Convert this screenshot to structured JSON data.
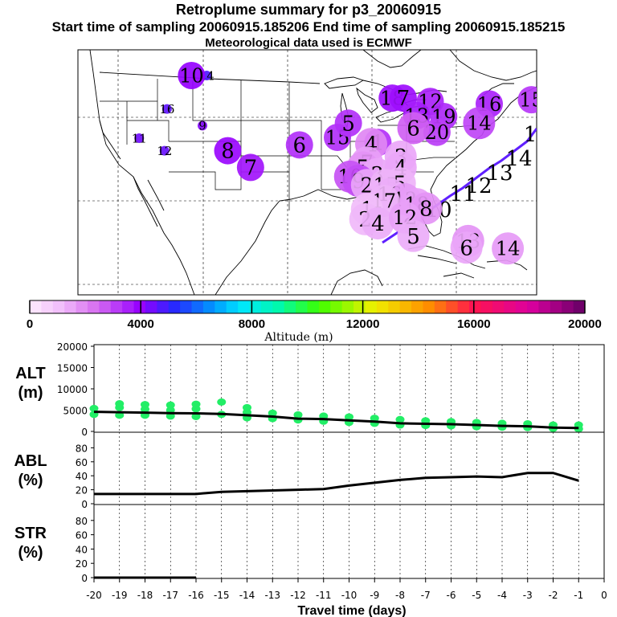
{
  "title": "Retroplume summary for p3_20060915",
  "subtitle": "Start time of sampling 20060915.185206     End time of sampling 20060915.185215",
  "met_line": "Meteorological data used is ECMWF",
  "chart_data": [
    {
      "type": "scatter",
      "name": "map",
      "description_labels": [
        "1",
        "2",
        "3",
        "4",
        "5",
        "6",
        "7",
        "8",
        "9",
        "10",
        "11",
        "12",
        "13",
        "14",
        "15",
        "16",
        "17",
        "18",
        "19"
      ],
      "plumes": [
        {
          "label": "18",
          "lon": -87.5,
          "lat": 47.3,
          "alt": 3800
        },
        {
          "label": "7",
          "lon": -86.2,
          "lat": 47.3,
          "alt": 3800
        },
        {
          "label": "12",
          "lon": -83.0,
          "lat": 46.9,
          "alt": 3500
        },
        {
          "label": "13",
          "lon": -84.6,
          "lat": 45.2,
          "alt": 3600
        },
        {
          "label": "19",
          "lon": -81.4,
          "lat": 45.1,
          "alt": 3400
        },
        {
          "label": "16",
          "lon": -76.0,
          "lat": 46.6,
          "alt": 3500
        },
        {
          "label": "15",
          "lon": -71.0,
          "lat": 47.1,
          "alt": 3200
        },
        {
          "label": "14",
          "lon": -77.2,
          "lat": 44.3,
          "alt": 3000
        },
        {
          "label": "20",
          "lon": -82.2,
          "lat": 43.2,
          "alt": 3100
        },
        {
          "label": "6",
          "lon": -85.0,
          "lat": 43.7,
          "alt": 2600
        },
        {
          "label": "15",
          "lon": -94.0,
          "lat": 42.6,
          "alt": 3300
        },
        {
          "label": "1",
          "lon": -89.2,
          "lat": 42.0,
          "alt": 3300
        },
        {
          "label": "4",
          "lon": -90.0,
          "lat": 41.8,
          "alt": 2000
        },
        {
          "label": "3",
          "lon": -86.5,
          "lat": 40.3,
          "alt": 1500
        },
        {
          "label": "4",
          "lon": -86.5,
          "lat": 39.0,
          "alt": 1500
        },
        {
          "label": "7",
          "lon": -90.5,
          "lat": 39.6,
          "alt": 1600
        },
        {
          "label": "5",
          "lon": -91.0,
          "lat": 39.0,
          "alt": 1800
        },
        {
          "label": "3",
          "lon": -89.3,
          "lat": 38.2,
          "alt": 1500
        },
        {
          "label": "10",
          "lon": -92.5,
          "lat": 37.9,
          "alt": 2800
        },
        {
          "label": "9",
          "lon": -91.5,
          "lat": 37.4,
          "alt": 2900
        },
        {
          "label": "2",
          "lon": -90.5,
          "lat": 36.9,
          "alt": 1500
        },
        {
          "label": "15",
          "lon": -88.3,
          "lat": 36.9,
          "alt": 1300
        },
        {
          "label": "5",
          "lon": -86.6,
          "lat": 37.1,
          "alt": 1300
        },
        {
          "label": "16",
          "lon": -87.8,
          "lat": 35.8,
          "alt": 1400
        },
        {
          "label": "12",
          "lon": -86.0,
          "lat": 35.2,
          "alt": 1700
        },
        {
          "label": "17",
          "lon": -88.5,
          "lat": 35.0,
          "alt": 1300
        },
        {
          "label": "18",
          "lon": -84.6,
          "lat": 34.6,
          "alt": 1600
        },
        {
          "label": "8",
          "lon": -83.5,
          "lat": 34.1,
          "alt": 1800
        },
        {
          "label": "1",
          "lon": -90.5,
          "lat": 34.0,
          "alt": 1100
        },
        {
          "label": "2",
          "lon": -90.7,
          "lat": 32.8,
          "alt": 1200
        },
        {
          "label": "4",
          "lon": -89.2,
          "lat": 32.3,
          "alt": 1400
        },
        {
          "label": "12",
          "lon": -86.0,
          "lat": 33.0,
          "alt": 1600
        },
        {
          "label": "5",
          "lon": -85.0,
          "lat": 30.8,
          "alt": 1400
        },
        {
          "label": "13",
          "lon": -78.5,
          "lat": 30.2,
          "alt": 1800
        },
        {
          "label": "6",
          "lon": -78.7,
          "lat": 29.4,
          "alt": 1500
        },
        {
          "label": "14",
          "lon": -73.8,
          "lat": 29.3,
          "alt": 1700
        },
        {
          "label": "8",
          "lon": -68.0,
          "lat": 28.2,
          "alt": 1300
        },
        {
          "label": "14",
          "lon": -109.5,
          "lat": 50.0,
          "alt": 4800
        },
        {
          "label": "10",
          "lon": -111.3,
          "lat": 50.0,
          "alt": 4000
        },
        {
          "label": "16",
          "lon": -114.2,
          "lat": 46.0,
          "alt": 4600
        },
        {
          "label": "9",
          "lon": -110.0,
          "lat": 44.0,
          "alt": 4200
        },
        {
          "label": "11",
          "lon": -117.5,
          "lat": 42.5,
          "alt": 4400
        },
        {
          "label": "12",
          "lon": -114.5,
          "lat": 41.0,
          "alt": 4500
        },
        {
          "label": "8",
          "lon": -107.0,
          "lat": 41.0,
          "alt": 3900
        },
        {
          "label": "6",
          "lon": -98.5,
          "lat": 41.7,
          "alt": 3300
        },
        {
          "label": "5",
          "lon": -92.7,
          "lat": 44.3,
          "alt": 3300
        },
        {
          "label": "7",
          "lon": -104.3,
          "lat": 39.0,
          "alt": 3700
        }
      ],
      "trajectory_labels": [
        "9",
        "10",
        "11",
        "12",
        "13",
        "14",
        "1"
      ],
      "colorbar": {
        "min": 0,
        "max": 20000,
        "ticks": [
          "0",
          "4000",
          "8000",
          "12000",
          "16000",
          "20000"
        ],
        "label": "Altitude (m)"
      }
    },
    {
      "type": "line",
      "name": "ALT",
      "ylabel_top": "ALT",
      "ylabel_bottom": "(m)",
      "ylim": [
        0,
        20000
      ],
      "yticks": [
        "0",
        "5000",
        "10000",
        "15000",
        "20000"
      ],
      "x": [
        -20,
        -19,
        -18,
        -17,
        -16,
        -15,
        -14,
        -13,
        -12,
        -11,
        -10,
        -9,
        -8,
        -7,
        -6,
        -5,
        -4,
        -3,
        -2,
        -1
      ],
      "values": [
        4600,
        4500,
        4400,
        4300,
        4250,
        4100,
        3800,
        3500,
        3000,
        2900,
        2600,
        2300,
        1900,
        1800,
        1700,
        1500,
        1300,
        1200,
        900,
        800
      ],
      "scatter_points": [
        {
          "x": -20,
          "y": 4000
        },
        {
          "x": -20,
          "y": 5400
        },
        {
          "x": -19,
          "y": 3800
        },
        {
          "x": -19,
          "y": 5600
        },
        {
          "x": -19,
          "y": 6500
        },
        {
          "x": -18,
          "y": 3800
        },
        {
          "x": -18,
          "y": 5200
        },
        {
          "x": -18,
          "y": 6300
        },
        {
          "x": -17,
          "y": 3600
        },
        {
          "x": -17,
          "y": 5000
        },
        {
          "x": -17,
          "y": 6200
        },
        {
          "x": -16,
          "y": 3500
        },
        {
          "x": -16,
          "y": 5300
        },
        {
          "x": -16,
          "y": 6400
        },
        {
          "x": -15,
          "y": 4000
        },
        {
          "x": -15,
          "y": 6900
        },
        {
          "x": -14,
          "y": 3200
        },
        {
          "x": -14,
          "y": 4500
        },
        {
          "x": -14,
          "y": 5600
        },
        {
          "x": -13,
          "y": 3000
        },
        {
          "x": -13,
          "y": 4300
        },
        {
          "x": -12,
          "y": 2700
        },
        {
          "x": -12,
          "y": 3900
        },
        {
          "x": -11,
          "y": 2400
        },
        {
          "x": -11,
          "y": 3600
        },
        {
          "x": -10,
          "y": 2100
        },
        {
          "x": -10,
          "y": 3400
        },
        {
          "x": -9,
          "y": 1900
        },
        {
          "x": -9,
          "y": 3100
        },
        {
          "x": -8,
          "y": 1500
        },
        {
          "x": -8,
          "y": 2800
        },
        {
          "x": -7,
          "y": 1400
        },
        {
          "x": -7,
          "y": 2500
        },
        {
          "x": -6,
          "y": 1300
        },
        {
          "x": -6,
          "y": 2300
        },
        {
          "x": -5,
          "y": 1100
        },
        {
          "x": -5,
          "y": 2100
        },
        {
          "x": -4,
          "y": 1000
        },
        {
          "x": -4,
          "y": 1900
        },
        {
          "x": -3,
          "y": 900
        },
        {
          "x": -3,
          "y": 1800
        },
        {
          "x": -2,
          "y": 700
        },
        {
          "x": -2,
          "y": 1500
        },
        {
          "x": -1,
          "y": 600
        },
        {
          "x": -1,
          "y": 1500
        }
      ]
    },
    {
      "type": "line",
      "name": "ABL",
      "ylabel_top": "ABL",
      "ylabel_bottom": "(%)",
      "ylim": [
        0,
        100
      ],
      "yticks": [
        "0",
        "20",
        "40",
        "60",
        "80"
      ],
      "x": [
        -20,
        -19,
        -18,
        -17,
        -16,
        -15,
        -14,
        -13,
        -12,
        -11,
        -10,
        -9,
        -8,
        -7,
        -6,
        -5,
        -4,
        -3,
        -2,
        -1
      ],
      "values": [
        14,
        14,
        14,
        14,
        14,
        17,
        18,
        19,
        20,
        21,
        26,
        30,
        34,
        37,
        38,
        39,
        38,
        44,
        44,
        33
      ]
    },
    {
      "type": "line",
      "name": "STR",
      "ylabel_top": "STR",
      "ylabel_bottom": "(%)",
      "ylim": [
        0,
        100
      ],
      "yticks": [
        "0",
        "20",
        "40",
        "60",
        "80"
      ],
      "x": [
        -20,
        -19,
        -18,
        -17,
        -16
      ],
      "values": [
        0,
        0,
        0,
        0,
        0
      ],
      "xticks": [
        "-20",
        "-19",
        "-18",
        "-17",
        "-16",
        "-15",
        "-14",
        "-13",
        "-12",
        "-11",
        "-10",
        "-9",
        "-8",
        "-7",
        "-6",
        "-5",
        "-4",
        "-3",
        "-2",
        "-1",
        "0"
      ],
      "xlabel": "Travel time (days)"
    }
  ]
}
